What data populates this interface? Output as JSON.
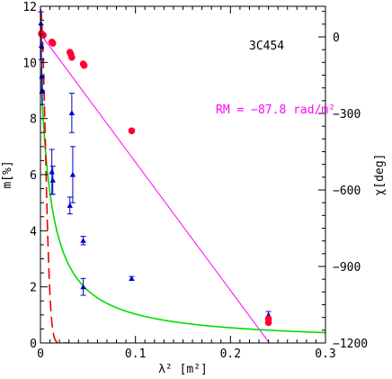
{
  "chart_data": {
    "type": "scatter",
    "title": "",
    "xlabel": "λ² [m²]",
    "ylabel_left": "m[%]",
    "ylabel_right": "χ[deg]",
    "xlim": [
      0,
      0.3
    ],
    "ylim_left": [
      0,
      12
    ],
    "ylim_right": [
      -1200,
      120
    ],
    "x_ticks": [
      0,
      0.1,
      0.2,
      0.3
    ],
    "x_tick_labels": [
      "0",
      "0.1",
      "0.2",
      "0.3"
    ],
    "y_left_ticks": [
      0,
      2,
      4,
      6,
      8,
      10,
      12
    ],
    "y_left_tick_labels": [
      "0",
      "2",
      "4",
      "6",
      "8",
      "10",
      "12"
    ],
    "y_right_ticks": [
      0,
      -300,
      -600,
      -900,
      -1200
    ],
    "y_right_tick_labels": [
      "0",
      "−300",
      "−600",
      "−900",
      "−1200"
    ],
    "grid": false,
    "annotations": [
      {
        "text": "3C454",
        "color": "#000000"
      },
      {
        "text": "RM = −87.8 rad/m²",
        "color": "#ff00ff"
      }
    ],
    "series": [
      {
        "axis": "left",
        "marker": "triangle",
        "color": "#0000cc",
        "points": [
          {
            "x": 0.0005,
            "y": 11.4,
            "err": 0.4
          },
          {
            "x": 0.001,
            "y": 10.6,
            "err": 0.5
          },
          {
            "x": 0.0015,
            "y": 9.5,
            "err": 0.6
          },
          {
            "x": 0.002,
            "y": 9.0,
            "err": 0.5
          },
          {
            "x": 0.012,
            "y": 6.1,
            "err": 0.8
          },
          {
            "x": 0.013,
            "y": 5.8,
            "err": 0.5
          },
          {
            "x": 0.031,
            "y": 4.9,
            "err": 0.3
          },
          {
            "x": 0.033,
            "y": 8.2,
            "err": 0.7
          },
          {
            "x": 0.034,
            "y": 6.0,
            "err": 1.0
          },
          {
            "x": 0.045,
            "y": 3.65,
            "err": 0.15
          },
          {
            "x": 0.045,
            "y": 2.0,
            "err": 0.3
          },
          {
            "x": 0.096,
            "y": 2.3,
            "err": 0.07
          },
          {
            "x": 0.24,
            "y": 1.0,
            "err": 0.12
          }
        ]
      },
      {
        "axis": "right",
        "marker": "circle",
        "color": "#ff0033",
        "points": [
          {
            "x": 0.001,
            "y": 13
          },
          {
            "x": 0.0015,
            "y": 10
          },
          {
            "x": 0.002,
            "y": 8
          },
          {
            "x": 0.003,
            "y": 7
          },
          {
            "x": 0.012,
            "y": -20
          },
          {
            "x": 0.013,
            "y": -25
          },
          {
            "x": 0.031,
            "y": -60
          },
          {
            "x": 0.032,
            "y": -68
          },
          {
            "x": 0.033,
            "y": -80
          },
          {
            "x": 0.045,
            "y": -106
          },
          {
            "x": 0.046,
            "y": -112
          },
          {
            "x": 0.096,
            "y": -368
          },
          {
            "x": 0.24,
            "y": -1105
          },
          {
            "x": 0.24,
            "y": -1120
          }
        ]
      }
    ],
    "lines": [
      {
        "name": "RM fit",
        "axis": "right",
        "color": "#ff00ff",
        "type": "linear",
        "intercept": 12,
        "slope": -5030
      },
      {
        "name": "green model",
        "axis": "left",
        "color": "#00dd00",
        "type": "inverse"
      },
      {
        "name": "red model",
        "axis": "left",
        "color": "#ee0000",
        "type": "gaussian",
        "dashed": true
      }
    ]
  }
}
